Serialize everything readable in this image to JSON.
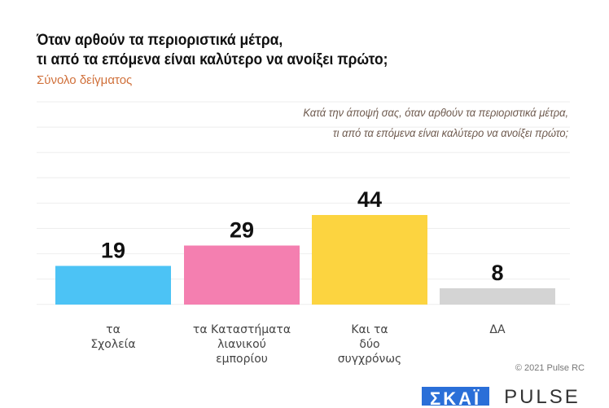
{
  "header": {
    "title_line1": "Όταν αρθούν τα περιοριστικά μέτρα,",
    "title_line2": "τι από τα επόμενα είναι καλύτερο να ανοίξει πρώτο;",
    "subtitle": "Σύνολο δείγματος"
  },
  "question": {
    "line1": "Κατά την άποψή σας, όταν αρθούν τα περιοριστικά μέτρα,",
    "line2": "τι από τα επόμενα είναι καλύτερο να ανοίξει πρώτο;"
  },
  "chart_data": {
    "type": "bar",
    "categories": [
      [
        "τα",
        "Σχολεία"
      ],
      [
        "τα Καταστήματα",
        "λιανικού",
        "εμπορίου"
      ],
      [
        "Και τα",
        "δύο",
        "συγχρόνως"
      ],
      [
        "ΔΑ"
      ]
    ],
    "values": [
      19,
      29,
      44,
      8
    ],
    "colors": [
      "#4cc3f5",
      "#f47fb0",
      "#fcd440",
      "#d4d4d4"
    ],
    "ylim": [
      0,
      100
    ],
    "grid": true
  },
  "footer": {
    "copyright": "© 2021 Pulse RC",
    "logo_skai": "ΣΚΑΪ",
    "logo_pulse": "PULSE"
  }
}
